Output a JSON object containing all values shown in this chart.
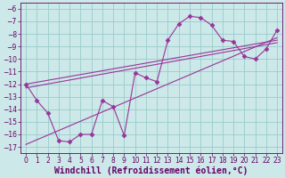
{
  "xlabel": "Windchill (Refroidissement éolien,°C)",
  "bg_color": "#cce8e8",
  "grid_color": "#99cccc",
  "line_color": "#993399",
  "xlim": [
    -0.5,
    23.5
  ],
  "ylim": [
    -17.5,
    -5.5
  ],
  "yticks": [
    -17,
    -16,
    -15,
    -14,
    -13,
    -12,
    -11,
    -10,
    -9,
    -8,
    -7,
    -6
  ],
  "xticks": [
    0,
    1,
    2,
    3,
    4,
    5,
    6,
    7,
    8,
    9,
    10,
    11,
    12,
    13,
    14,
    15,
    16,
    17,
    18,
    19,
    20,
    21,
    22,
    23
  ],
  "curve_x": [
    0,
    1,
    2,
    3,
    4,
    5,
    6,
    7,
    8,
    9,
    10,
    11,
    12,
    13,
    14,
    15,
    16,
    17,
    18,
    19,
    20,
    21,
    22,
    23
  ],
  "curve_y": [
    -12.0,
    -13.3,
    -14.3,
    -16.5,
    -16.6,
    -16.0,
    -16.0,
    -13.3,
    -13.8,
    -16.1,
    -11.1,
    -11.5,
    -11.8,
    -8.5,
    -7.2,
    -6.6,
    -6.7,
    -7.3,
    -8.5,
    -8.6,
    -9.8,
    -10.0,
    -9.2,
    -7.7
  ],
  "trend1_x": [
    0,
    23
  ],
  "trend1_y": [
    -12.0,
    -8.5
  ],
  "trend2_x": [
    0,
    23
  ],
  "trend2_y": [
    -12.3,
    -8.7
  ],
  "trend3_x": [
    0,
    23
  ],
  "trend3_y": [
    -16.8,
    -8.3
  ],
  "font_color": "#660066",
  "tick_fontsize": 5.5,
  "xlabel_fontsize": 7.0
}
